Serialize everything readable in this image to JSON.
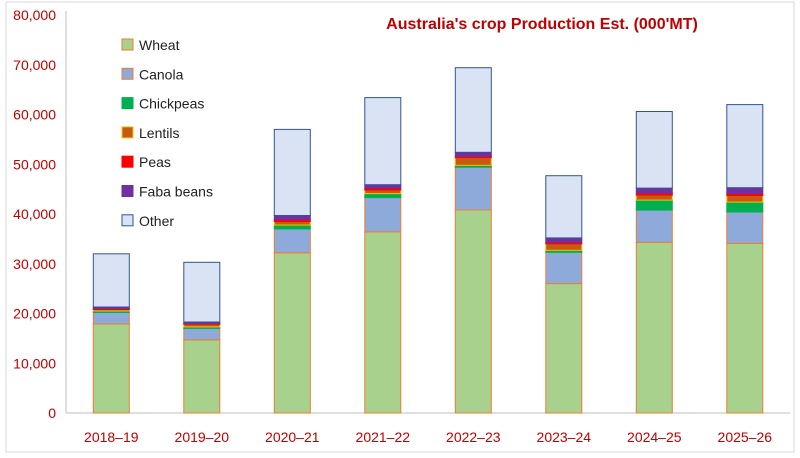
{
  "chart_data": {
    "type": "bar",
    "stacked": true,
    "title": "Australia's crop Production Est. (000'MT)",
    "xlabel": "",
    "ylabel": "",
    "ylim": [
      0,
      80000
    ],
    "yticks": [
      0,
      10000,
      20000,
      30000,
      40000,
      50000,
      60000,
      70000,
      80000
    ],
    "ytick_labels": [
      "0",
      "10,000",
      "20,000",
      "30,000",
      "40,000",
      "50,000",
      "60,000",
      "70,000",
      "80,000"
    ],
    "grid": false,
    "legend_position": "top-left",
    "categories": [
      "2018–19",
      "2019–20",
      "2020–21",
      "2021–22",
      "2022–23",
      "2023–24",
      "2024–25",
      "2025–26"
    ],
    "series": [
      {
        "name": "Wheat",
        "fill": "#a9d18e",
        "stroke": "#ed7d31",
        "values": [
          17900,
          14700,
          32200,
          36400,
          40800,
          26000,
          34300,
          34100
        ]
      },
      {
        "name": "Canola",
        "fill": "#8eaadb",
        "stroke": "#ed7d31",
        "values": [
          2300,
          2300,
          4800,
          6900,
          8600,
          6300,
          6500,
          6300
        ]
      },
      {
        "name": "Chickpeas",
        "fill": "#00b050",
        "stroke": "#00b050",
        "values": [
          300,
          300,
          800,
          800,
          400,
          400,
          2000,
          2000
        ]
      },
      {
        "name": "Lentils",
        "fill": "#c55a11",
        "stroke": "#ffc000",
        "values": [
          300,
          500,
          700,
          700,
          1500,
          1300,
          1000,
          1300
        ]
      },
      {
        "name": "Peas",
        "fill": "#ff0000",
        "stroke": "#ff0000",
        "values": [
          200,
          200,
          400,
          400,
          300,
          300,
          400,
          400
        ]
      },
      {
        "name": "Faba beans",
        "fill": "#7030a0",
        "stroke": "#7030a0",
        "values": [
          300,
          300,
          800,
          700,
          800,
          900,
          1000,
          1200
        ]
      },
      {
        "name": "Other",
        "fill": "#dae3f3",
        "stroke": "#2f5597",
        "values": [
          10700,
          12000,
          17300,
          17500,
          17000,
          12500,
          15400,
          16700
        ]
      }
    ]
  }
}
